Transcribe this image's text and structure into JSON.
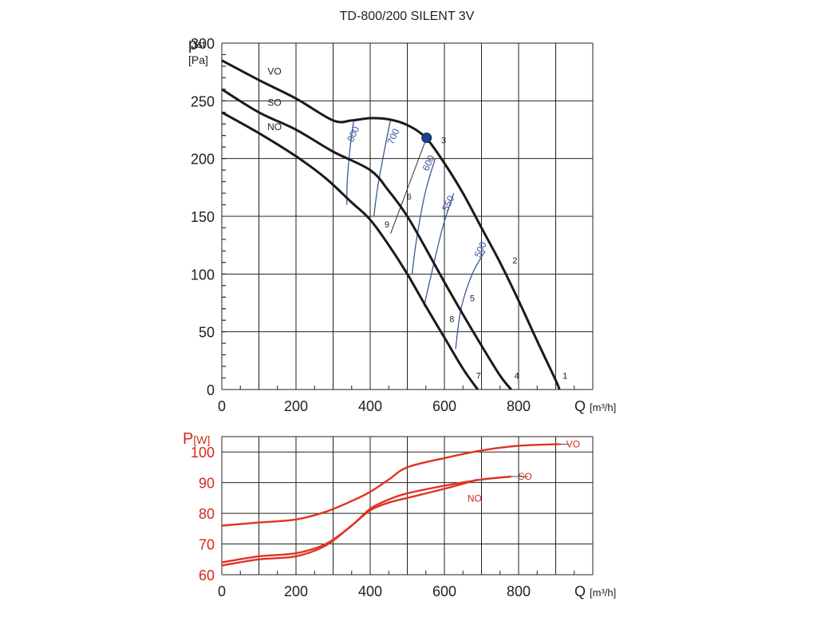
{
  "chart_data": [
    {
      "type": "line",
      "title": "TD-800/200 SILENT 3V",
      "ylabel_main": "pst",
      "ylabel_sub": "st",
      "yunit": "[Pa]",
      "xlabel": "Q",
      "xunit": "[m³/h]",
      "xlim": [
        0,
        1000
      ],
      "ylim": [
        0,
        300
      ],
      "x_ticks": [
        0,
        200,
        400,
        600,
        800
      ],
      "y_ticks": [
        0,
        50,
        100,
        150,
        200,
        250,
        300
      ],
      "grid": true,
      "colors": {
        "curve": "#1a1a1a",
        "rpm": "#3a5a9a",
        "point": "#1f3f8f",
        "grid": "#222222"
      },
      "series": [
        {
          "name": "VO",
          "x": [
            0,
            100,
            200,
            300,
            350,
            400,
            450,
            500,
            550,
            600,
            650,
            700,
            750,
            800,
            850,
            900,
            910
          ],
          "y": [
            285,
            268,
            252,
            233,
            233,
            235,
            234,
            229,
            218,
            196,
            170,
            140,
            110,
            77,
            42,
            8,
            0
          ]
        },
        {
          "name": "SO",
          "x": [
            0,
            100,
            200,
            300,
            400,
            450,
            500,
            550,
            600,
            650,
            700,
            750,
            780
          ],
          "y": [
            260,
            240,
            225,
            206,
            190,
            172,
            150,
            122,
            93,
            65,
            38,
            12,
            0
          ]
        },
        {
          "name": "NO",
          "x": [
            0,
            100,
            200,
            280,
            350,
            400,
            450,
            500,
            550,
            600,
            650,
            690
          ],
          "y": [
            240,
            222,
            202,
            183,
            162,
            147,
            125,
            100,
            72,
            45,
            18,
            0
          ]
        }
      ],
      "rpm_curves": [
        {
          "name": "800",
          "x": [
            355,
            346,
            338,
            337
          ],
          "y": [
            232,
            210,
            180,
            160
          ]
        },
        {
          "name": "700",
          "x": [
            455,
            440,
            420,
            410
          ],
          "y": [
            234,
            210,
            175,
            150
          ]
        },
        {
          "name": "600",
          "x": [
            575,
            548,
            525,
            513
          ],
          "y": [
            200,
            170,
            130,
            100
          ]
        },
        {
          "name": "550",
          "x": [
            625,
            595,
            565,
            545
          ],
          "y": [
            170,
            140,
            100,
            72
          ]
        },
        {
          "name": "500",
          "x": [
            710,
            675,
            645,
            630
          ],
          "y": [
            120,
            100,
            70,
            35
          ]
        }
      ],
      "series_labels": [
        {
          "text": "VO",
          "x": 155,
          "y": 270
        },
        {
          "text": "SO",
          "x": 155,
          "y": 243
        },
        {
          "text": "NO",
          "x": 155,
          "y": 222
        }
      ],
      "rpm_labels": [
        {
          "text": "800",
          "x": 362,
          "y": 220
        },
        {
          "text": "700",
          "x": 470,
          "y": 218
        },
        {
          "text": "600",
          "x": 565,
          "y": 195
        },
        {
          "text": "550",
          "x": 618,
          "y": 160
        },
        {
          "text": "500",
          "x": 705,
          "y": 120
        }
      ],
      "operating_point": {
        "x": 552,
        "y": 218
      },
      "system_lines": [
        {
          "x": [
            455,
            552
          ],
          "y": [
            135,
            218
          ]
        }
      ],
      "point_labels": [
        {
          "text": "1",
          "x": 925,
          "y": 8
        },
        {
          "text": "2",
          "x": 790,
          "y": 108
        },
        {
          "text": "3",
          "x": 598,
          "y": 212
        },
        {
          "text": "4",
          "x": 795,
          "y": 8
        },
        {
          "text": "5",
          "x": 675,
          "y": 75
        },
        {
          "text": "6",
          "x": 505,
          "y": 163
        },
        {
          "text": "7",
          "x": 692,
          "y": 8
        },
        {
          "text": "8",
          "x": 620,
          "y": 57
        },
        {
          "text": "9",
          "x": 445,
          "y": 139
        }
      ]
    },
    {
      "type": "line",
      "ylabel_main": "P",
      "yunit": "[W]",
      "xlabel": "Q",
      "xunit": "[m³/h]",
      "xlim": [
        0,
        1000
      ],
      "ylim": [
        60,
        105
      ],
      "x_ticks": [
        0,
        200,
        400,
        600,
        800
      ],
      "y_ticks": [
        60,
        70,
        80,
        90,
        100
      ],
      "grid": true,
      "colors": {
        "curve": "#e03323",
        "axis_label": "#d6281e"
      },
      "series": [
        {
          "name": "VO",
          "x": [
            0,
            100,
            200,
            280,
            350,
            400,
            450,
            500,
            600,
            700,
            800,
            900,
            910
          ],
          "y": [
            76,
            77,
            78,
            80.5,
            84,
            87,
            91,
            95,
            98,
            100.5,
            102,
            102.5,
            102.5
          ]
        },
        {
          "name": "SO",
          "x": [
            0,
            100,
            200,
            280,
            350,
            400,
            450,
            500,
            600,
            700,
            780
          ],
          "y": [
            64,
            66,
            67,
            70,
            76,
            81.5,
            84.5,
            86.5,
            89,
            91,
            92
          ]
        },
        {
          "name": "NO",
          "x": [
            0,
            100,
            200,
            280,
            350,
            400,
            450,
            500,
            600,
            690
          ],
          "y": [
            63,
            65,
            66,
            69.5,
            76,
            81,
            83.5,
            85,
            88,
            91
          ]
        }
      ],
      "series_labels": [
        {
          "text": "VO",
          "x": 920,
          "y": 102.5,
          "anchor": "start",
          "line_to": 935
        },
        {
          "text": "SO",
          "x": 790,
          "y": 92,
          "anchor": "start",
          "line_to": 825
        },
        {
          "text": "NO",
          "x": 705,
          "y": 89,
          "anchor": "end",
          "line_to": 700
        }
      ]
    }
  ]
}
